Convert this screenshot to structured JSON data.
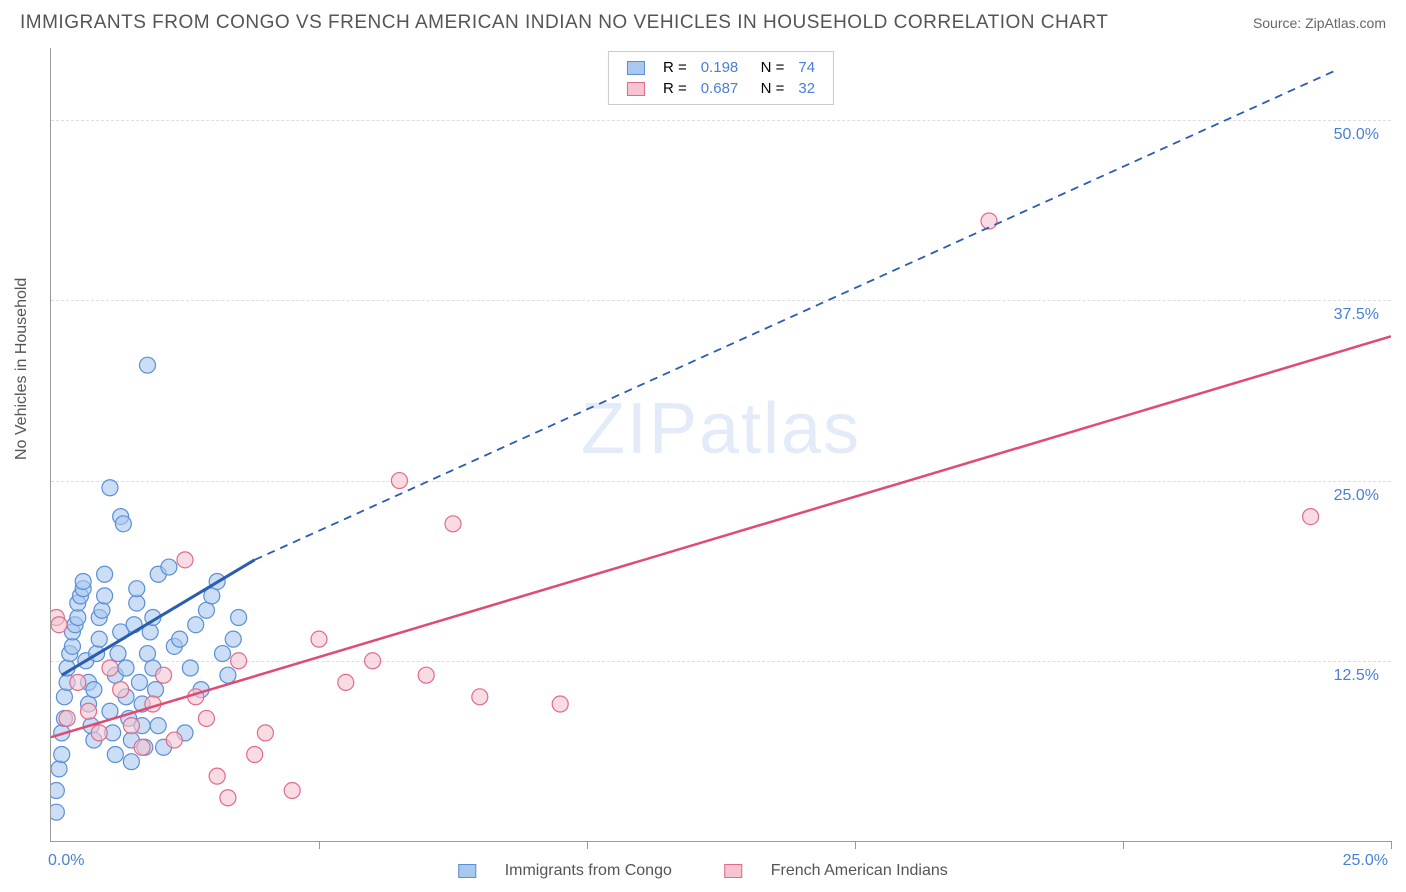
{
  "title": "IMMIGRANTS FROM CONGO VS FRENCH AMERICAN INDIAN NO VEHICLES IN HOUSEHOLD CORRELATION CHART",
  "source_label": "Source: ",
  "source_name": "ZipAtlas.com",
  "ylabel": "No Vehicles in Household",
  "watermark": "ZIPatlas",
  "chart": {
    "type": "scatter",
    "xlim": [
      0,
      25
    ],
    "ylim": [
      0,
      55
    ],
    "x_ticks": [
      0,
      5,
      10,
      15,
      20,
      25
    ],
    "y_ticks": [
      12.5,
      25.0,
      37.5,
      50.0
    ],
    "y_tick_labels": [
      "12.5%",
      "25.0%",
      "37.5%",
      "50.0%"
    ],
    "x_origin_label": "0.0%",
    "x_end_label": "25.0%",
    "grid_color": "#dddddd",
    "axis_color": "#999999",
    "label_color": "#4a7fd8",
    "series": [
      {
        "name": "Immigrants from Congo",
        "color_fill": "#a8c8f0",
        "color_stroke": "#5b8fd6",
        "r_value": "0.198",
        "n_value": "74",
        "trend_color": "#2a5db0",
        "trend_start": [
          0.2,
          11.5
        ],
        "trend_solid_end": [
          3.8,
          19.5
        ],
        "trend_dash_end": [
          24.0,
          53.5
        ],
        "points": [
          [
            0.1,
            2.0
          ],
          [
            0.1,
            3.5
          ],
          [
            0.15,
            5.0
          ],
          [
            0.2,
            6.0
          ],
          [
            0.2,
            7.5
          ],
          [
            0.25,
            8.5
          ],
          [
            0.25,
            10.0
          ],
          [
            0.3,
            11.0
          ],
          [
            0.3,
            12.0
          ],
          [
            0.35,
            13.0
          ],
          [
            0.4,
            13.5
          ],
          [
            0.4,
            14.5
          ],
          [
            0.45,
            15.0
          ],
          [
            0.5,
            15.5
          ],
          [
            0.5,
            16.5
          ],
          [
            0.55,
            17.0
          ],
          [
            0.6,
            17.5
          ],
          [
            0.6,
            18.0
          ],
          [
            0.65,
            12.5
          ],
          [
            0.7,
            11.0
          ],
          [
            0.7,
            9.5
          ],
          [
            0.75,
            8.0
          ],
          [
            0.8,
            7.0
          ],
          [
            0.8,
            10.5
          ],
          [
            0.85,
            13.0
          ],
          [
            0.9,
            14.0
          ],
          [
            0.9,
            15.5
          ],
          [
            0.95,
            16.0
          ],
          [
            1.0,
            17.0
          ],
          [
            1.0,
            18.5
          ],
          [
            1.1,
            24.5
          ],
          [
            1.1,
            9.0
          ],
          [
            1.15,
            7.5
          ],
          [
            1.2,
            6.0
          ],
          [
            1.2,
            11.5
          ],
          [
            1.25,
            13.0
          ],
          [
            1.3,
            14.5
          ],
          [
            1.3,
            22.5
          ],
          [
            1.35,
            22.0
          ],
          [
            1.4,
            12.0
          ],
          [
            1.4,
            10.0
          ],
          [
            1.45,
            8.5
          ],
          [
            1.5,
            7.0
          ],
          [
            1.5,
            5.5
          ],
          [
            1.55,
            15.0
          ],
          [
            1.6,
            16.5
          ],
          [
            1.6,
            17.5
          ],
          [
            1.65,
            11.0
          ],
          [
            1.7,
            9.5
          ],
          [
            1.7,
            8.0
          ],
          [
            1.75,
            6.5
          ],
          [
            1.8,
            33.0
          ],
          [
            1.8,
            13.0
          ],
          [
            1.85,
            14.5
          ],
          [
            1.9,
            15.5
          ],
          [
            1.9,
            12.0
          ],
          [
            1.95,
            10.5
          ],
          [
            2.0,
            18.5
          ],
          [
            2.0,
            8.0
          ],
          [
            2.1,
            6.5
          ],
          [
            2.2,
            19.0
          ],
          [
            2.3,
            13.5
          ],
          [
            2.4,
            14.0
          ],
          [
            2.5,
            7.5
          ],
          [
            2.6,
            12.0
          ],
          [
            2.7,
            15.0
          ],
          [
            2.8,
            10.5
          ],
          [
            2.9,
            16.0
          ],
          [
            3.0,
            17.0
          ],
          [
            3.1,
            18.0
          ],
          [
            3.2,
            13.0
          ],
          [
            3.3,
            11.5
          ],
          [
            3.4,
            14.0
          ],
          [
            3.5,
            15.5
          ]
        ]
      },
      {
        "name": "French American Indians",
        "color_fill": "#f5c4d0",
        "color_stroke": "#e06b8a",
        "r_value": "0.687",
        "n_value": "32",
        "trend_color": "#e04b72",
        "trend_start": [
          0.0,
          7.2
        ],
        "trend_solid_end": [
          25.0,
          35.0
        ],
        "trend_dash_end": null,
        "points": [
          [
            0.1,
            15.5
          ],
          [
            0.3,
            8.5
          ],
          [
            0.5,
            11.0
          ],
          [
            0.7,
            9.0
          ],
          [
            0.9,
            7.5
          ],
          [
            1.1,
            12.0
          ],
          [
            1.3,
            10.5
          ],
          [
            1.5,
            8.0
          ],
          [
            1.7,
            6.5
          ],
          [
            1.9,
            9.5
          ],
          [
            2.1,
            11.5
          ],
          [
            2.3,
            7.0
          ],
          [
            2.5,
            19.5
          ],
          [
            2.7,
            10.0
          ],
          [
            2.9,
            8.5
          ],
          [
            3.1,
            4.5
          ],
          [
            3.3,
            3.0
          ],
          [
            3.5,
            12.5
          ],
          [
            3.8,
            6.0
          ],
          [
            4.0,
            7.5
          ],
          [
            4.5,
            3.5
          ],
          [
            5.0,
            14.0
          ],
          [
            5.5,
            11.0
          ],
          [
            6.0,
            12.5
          ],
          [
            6.5,
            25.0
          ],
          [
            7.0,
            11.5
          ],
          [
            7.5,
            22.0
          ],
          [
            8.0,
            10.0
          ],
          [
            9.5,
            9.5
          ],
          [
            17.5,
            43.0
          ],
          [
            23.5,
            22.5
          ],
          [
            0.15,
            15.0
          ]
        ]
      }
    ]
  },
  "legend_bottom": {
    "series1": "Immigrants from Congo",
    "series2": "French American Indians"
  }
}
